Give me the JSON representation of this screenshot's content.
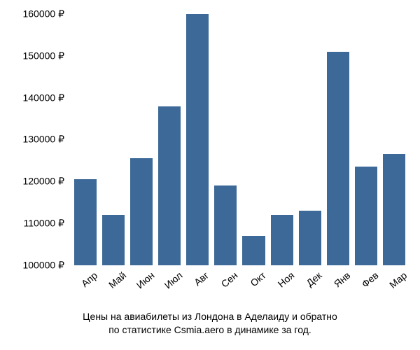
{
  "chart": {
    "type": "bar",
    "categories": [
      "Апр",
      "Май",
      "Июн",
      "Июл",
      "Авг",
      "Сен",
      "Окт",
      "Ноя",
      "Дек",
      "Янв",
      "Фев",
      "Мар"
    ],
    "values": [
      120500,
      112000,
      125500,
      138000,
      160000,
      119000,
      107000,
      112000,
      113000,
      151000,
      123500,
      126500
    ],
    "bar_color": "#3d6998",
    "ylim_min": 100000,
    "ylim_max": 160000,
    "ytick_step": 10000,
    "y_ticks": [
      100000,
      110000,
      120000,
      130000,
      140000,
      150000,
      160000
    ],
    "y_tick_labels": [
      "100000 ₽",
      "110000 ₽",
      "120000 ₽",
      "130000 ₽",
      "140000 ₽",
      "150000 ₽",
      "160000 ₽"
    ],
    "y_label_fontsize": 14,
    "x_label_fontsize": 14,
    "x_label_rotation": -40,
    "background_color": "#ffffff",
    "text_color": "#000000",
    "caption_line1": "Цены на авиабилеты из Лондона в Аделаиду и обратно",
    "caption_line2": "по статистике Csmia.aero в динамике за год.",
    "caption_fontsize": 14
  }
}
